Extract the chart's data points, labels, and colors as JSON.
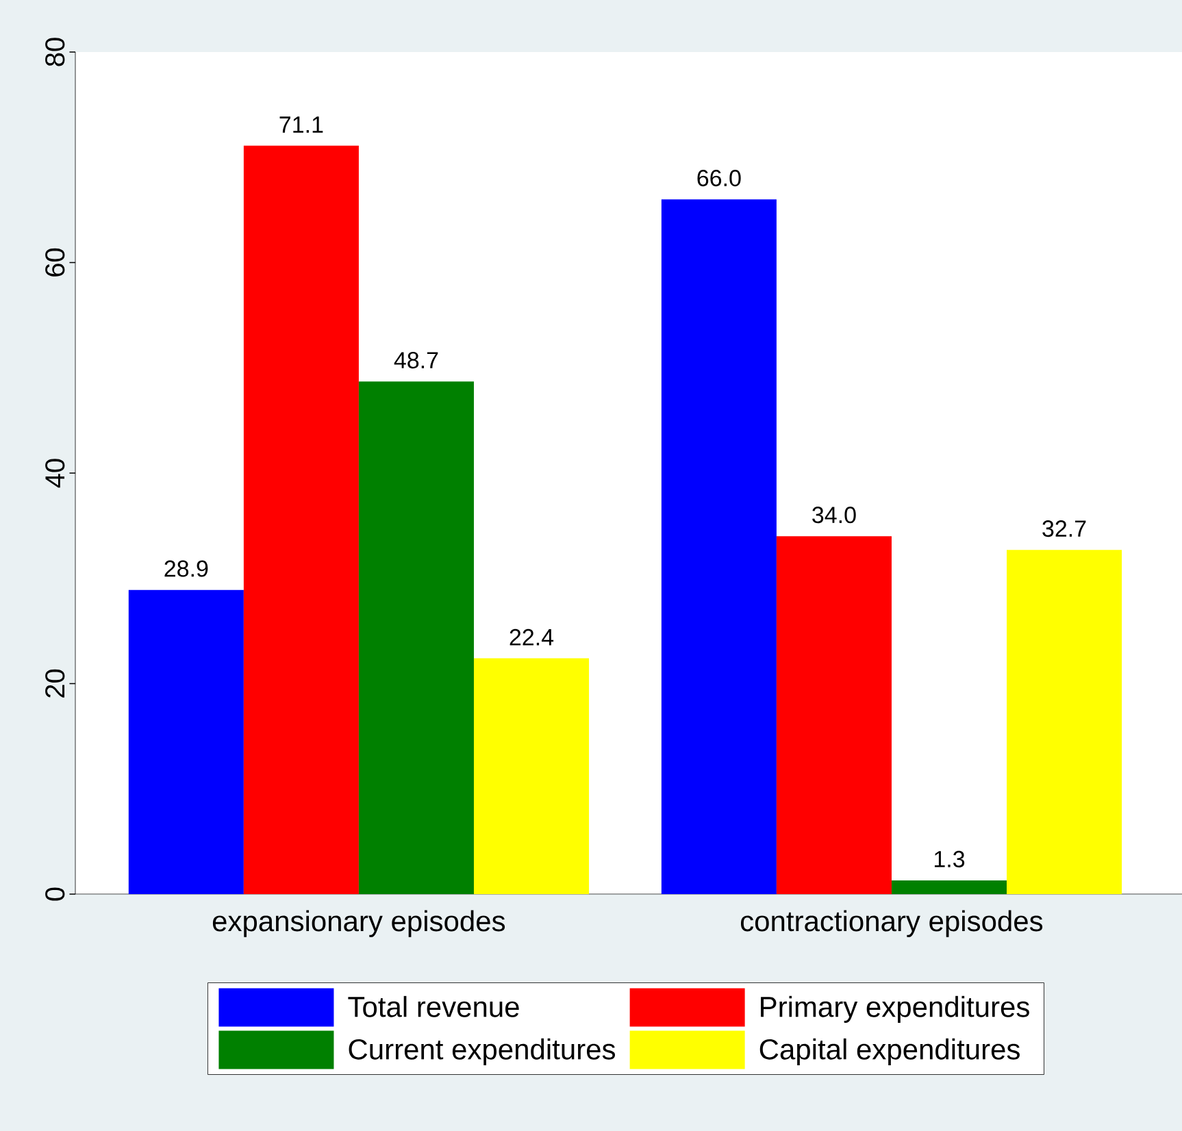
{
  "chart_data": {
    "type": "bar",
    "categories": [
      "expansionary episodes",
      "contractionary episodes"
    ],
    "series": [
      {
        "name": "Total revenue",
        "color": "#0000ff",
        "values": [
          28.9,
          66.0
        ],
        "value_labels": [
          "28.9",
          "66.0"
        ]
      },
      {
        "name": "Primary expenditures",
        "color": "#ff0000",
        "values": [
          71.1,
          34.0
        ],
        "value_labels": [
          "71.1",
          "34.0"
        ]
      },
      {
        "name": "Current expenditures",
        "color": "#008000",
        "values": [
          48.7,
          1.3
        ],
        "value_labels": [
          "48.7",
          "1.3"
        ]
      },
      {
        "name": "Capital expenditures",
        "color": "#ffff00",
        "values": [
          22.4,
          32.7
        ],
        "value_labels": [
          "22.4",
          "32.7"
        ]
      }
    ],
    "ylim": [
      0,
      80
    ],
    "yticks": [
      0,
      20,
      40,
      60,
      80
    ],
    "legend": "bottom"
  }
}
